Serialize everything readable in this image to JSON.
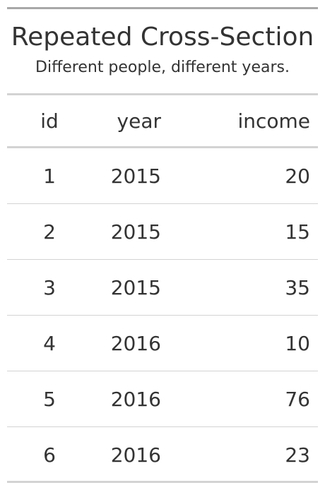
{
  "table": {
    "title": "Repeated Cross-Section",
    "subtitle": "Different people, different years.",
    "columns": [
      "id",
      "year",
      "income"
    ],
    "rows": [
      [
        "1",
        "2015",
        "20"
      ],
      [
        "2",
        "2015",
        "15"
      ],
      [
        "3",
        "2015",
        "35"
      ],
      [
        "4",
        "2016",
        "10"
      ],
      [
        "5",
        "2016",
        "76"
      ],
      [
        "6",
        "2016",
        "23"
      ]
    ]
  },
  "colors": {
    "text": "#333333",
    "rule_dark": "#a8a8a8",
    "rule_light": "#d3d3d3"
  }
}
